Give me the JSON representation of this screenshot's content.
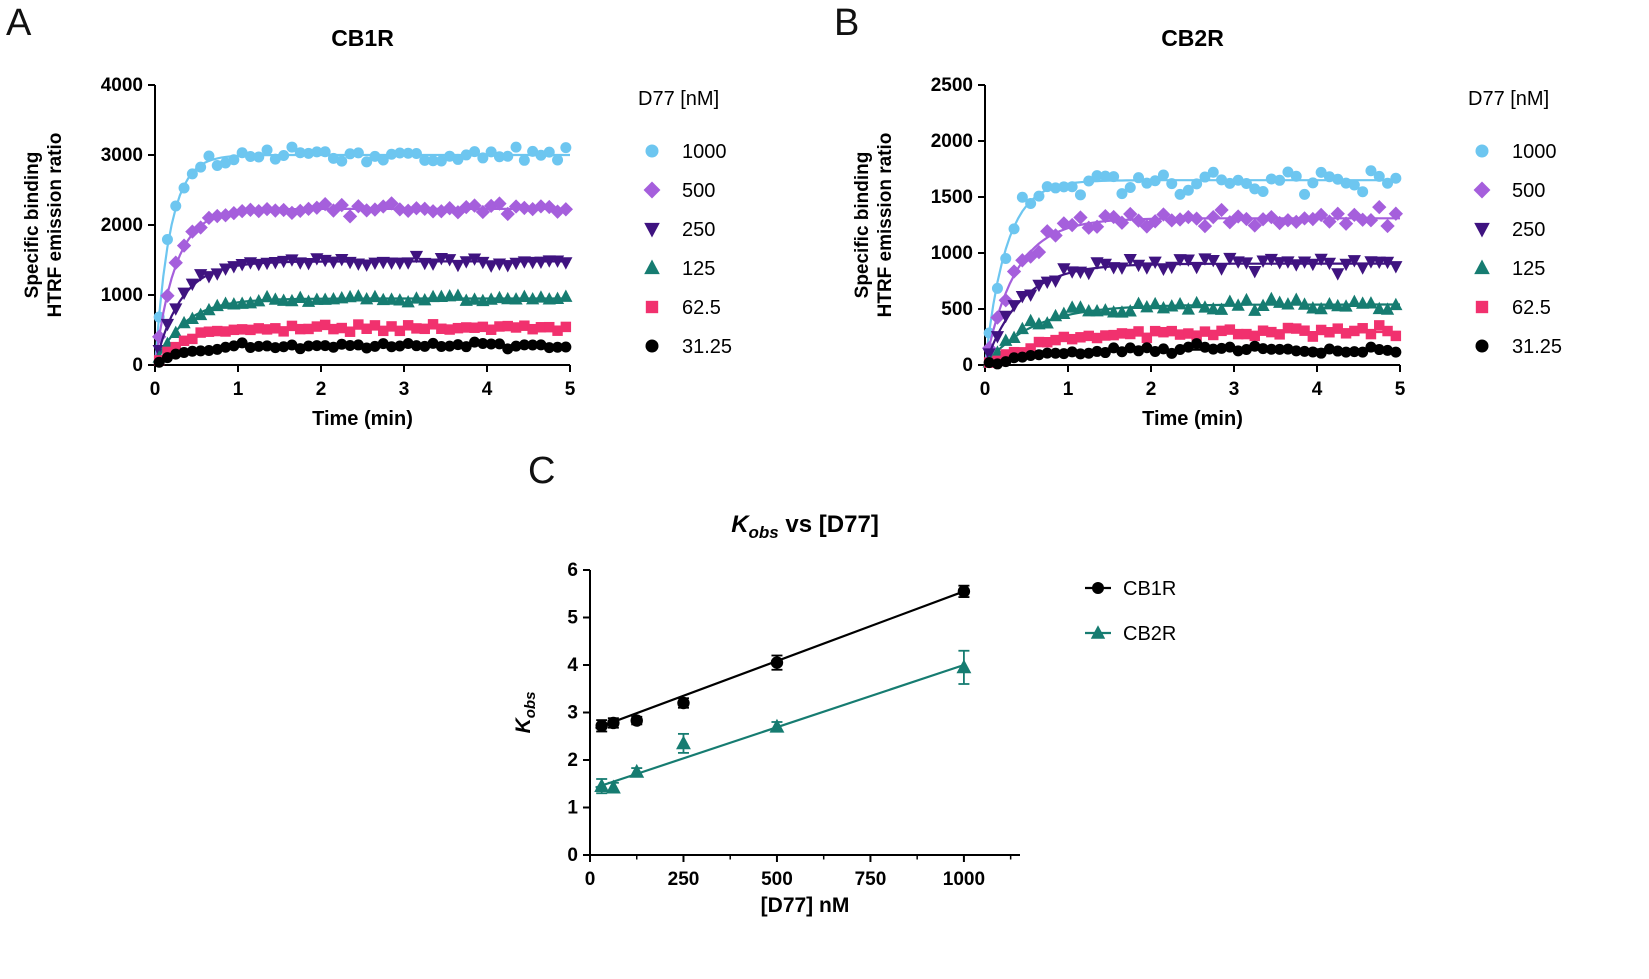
{
  "panels": [
    {
      "letter": "A"
    },
    {
      "letter": "B"
    },
    {
      "letter": "C"
    }
  ],
  "chart_data": [
    {
      "id": "cb1r_kinetics",
      "type": "scatter",
      "title": "CB1R",
      "xlabel": "Time (min)",
      "ylabel_lines": [
        "Specific binding",
        "HTRF emission ratio"
      ],
      "legend_title": "D77 [nM]",
      "xlim": [
        0,
        5
      ],
      "ylim": [
        0,
        4000
      ],
      "xticks": [
        0,
        1,
        2,
        3,
        4,
        5
      ],
      "yticks": [
        0,
        1000,
        2000,
        3000,
        4000
      ],
      "points_per_trace": 50,
      "t_start": 0.05,
      "t_step": 0.1,
      "series": [
        {
          "name": "1000",
          "marker": "circle",
          "color": "#6DC6F0",
          "plateau": 3000,
          "kobs": 5.5,
          "noise": 120
        },
        {
          "name": "500",
          "marker": "diamond",
          "color": "#A55FDC",
          "plateau": 2230,
          "kobs": 4.05,
          "noise": 70
        },
        {
          "name": "250",
          "marker": "triangle-down",
          "color": "#3F1380",
          "plateau": 1480,
          "kobs": 3.2,
          "noise": 65
        },
        {
          "name": "125",
          "marker": "triangle-up",
          "color": "#167C71",
          "plateau": 950,
          "kobs": 2.85,
          "noise": 55
        },
        {
          "name": "62.5",
          "marker": "square",
          "color": "#F1316E",
          "plateau": 530,
          "kobs": 2.8,
          "noise": 50
        },
        {
          "name": "31.25",
          "marker": "circle",
          "color": "#000000",
          "plateau": 280,
          "kobs": 2.7,
          "noise": 45
        }
      ]
    },
    {
      "id": "cb2r_kinetics",
      "type": "scatter",
      "title": "CB2R",
      "xlabel": "Time (min)",
      "ylabel_lines": [
        "Specific binding",
        "HTRF emission ratio"
      ],
      "legend_title": "D77 [nM]",
      "xlim": [
        0,
        5
      ],
      "ylim": [
        0,
        2500
      ],
      "xticks": [
        0,
        1,
        2,
        3,
        4,
        5
      ],
      "yticks": [
        0,
        500,
        1000,
        1500,
        2000,
        2500
      ],
      "points_per_trace": 50,
      "t_start": 0.05,
      "t_step": 0.1,
      "series": [
        {
          "name": "1000",
          "marker": "circle",
          "color": "#6DC6F0",
          "plateau": 1650,
          "kobs": 3.95,
          "noise": 110
        },
        {
          "name": "500",
          "marker": "diamond",
          "color": "#A55FDC",
          "plateau": 1310,
          "kobs": 2.7,
          "noise": 80
        },
        {
          "name": "250",
          "marker": "triangle-down",
          "color": "#3F1380",
          "plateau": 905,
          "kobs": 2.35,
          "noise": 60
        },
        {
          "name": "125",
          "marker": "triangle-up",
          "color": "#167C71",
          "plateau": 540,
          "kobs": 1.75,
          "noise": 55
        },
        {
          "name": "62.5",
          "marker": "square",
          "color": "#F1316E",
          "plateau": 295,
          "kobs": 1.45,
          "noise": 45
        },
        {
          "name": "31.25",
          "marker": "circle",
          "color": "#000000",
          "plateau": 140,
          "kobs": 1.45,
          "noise": 38
        }
      ]
    },
    {
      "id": "kobs_vs_d77",
      "type": "scatter-line",
      "title": {
        "k": "K",
        "sub": "obs",
        "rest": " vs [D77]"
      },
      "xlabel": "[D77] nM",
      "ylabel": {
        "k": "K",
        "sub": "obs"
      },
      "xlim": [
        0,
        1150
      ],
      "ylim": [
        0,
        6
      ],
      "xticks": [
        0,
        250,
        500,
        750,
        1000
      ],
      "xminor": [
        125,
        375,
        625,
        875,
        1125
      ],
      "yticks": [
        0,
        1,
        2,
        3,
        4,
        5,
        6
      ],
      "series": [
        {
          "name": "CB1R",
          "marker": "circle",
          "color": "#000000",
          "x": [
            31.25,
            62.5,
            125,
            250,
            500,
            1000
          ],
          "y": [
            2.72,
            2.78,
            2.83,
            3.2,
            4.05,
            5.55
          ],
          "err": [
            0.12,
            0.1,
            0.08,
            0.1,
            0.15,
            0.12
          ],
          "fit_intercept": 2.62,
          "fit_slope": 0.00293
        },
        {
          "name": "CB2R",
          "marker": "triangle-up",
          "color": "#167C71",
          "x": [
            31.25,
            62.5,
            125,
            250,
            500,
            1000
          ],
          "y": [
            1.45,
            1.42,
            1.75,
            2.35,
            2.7,
            3.95
          ],
          "err": [
            0.15,
            0.1,
            0.08,
            0.2,
            0.1,
            0.35
          ],
          "fit_intercept": 1.38,
          "fit_slope": 0.00262
        }
      ]
    }
  ]
}
